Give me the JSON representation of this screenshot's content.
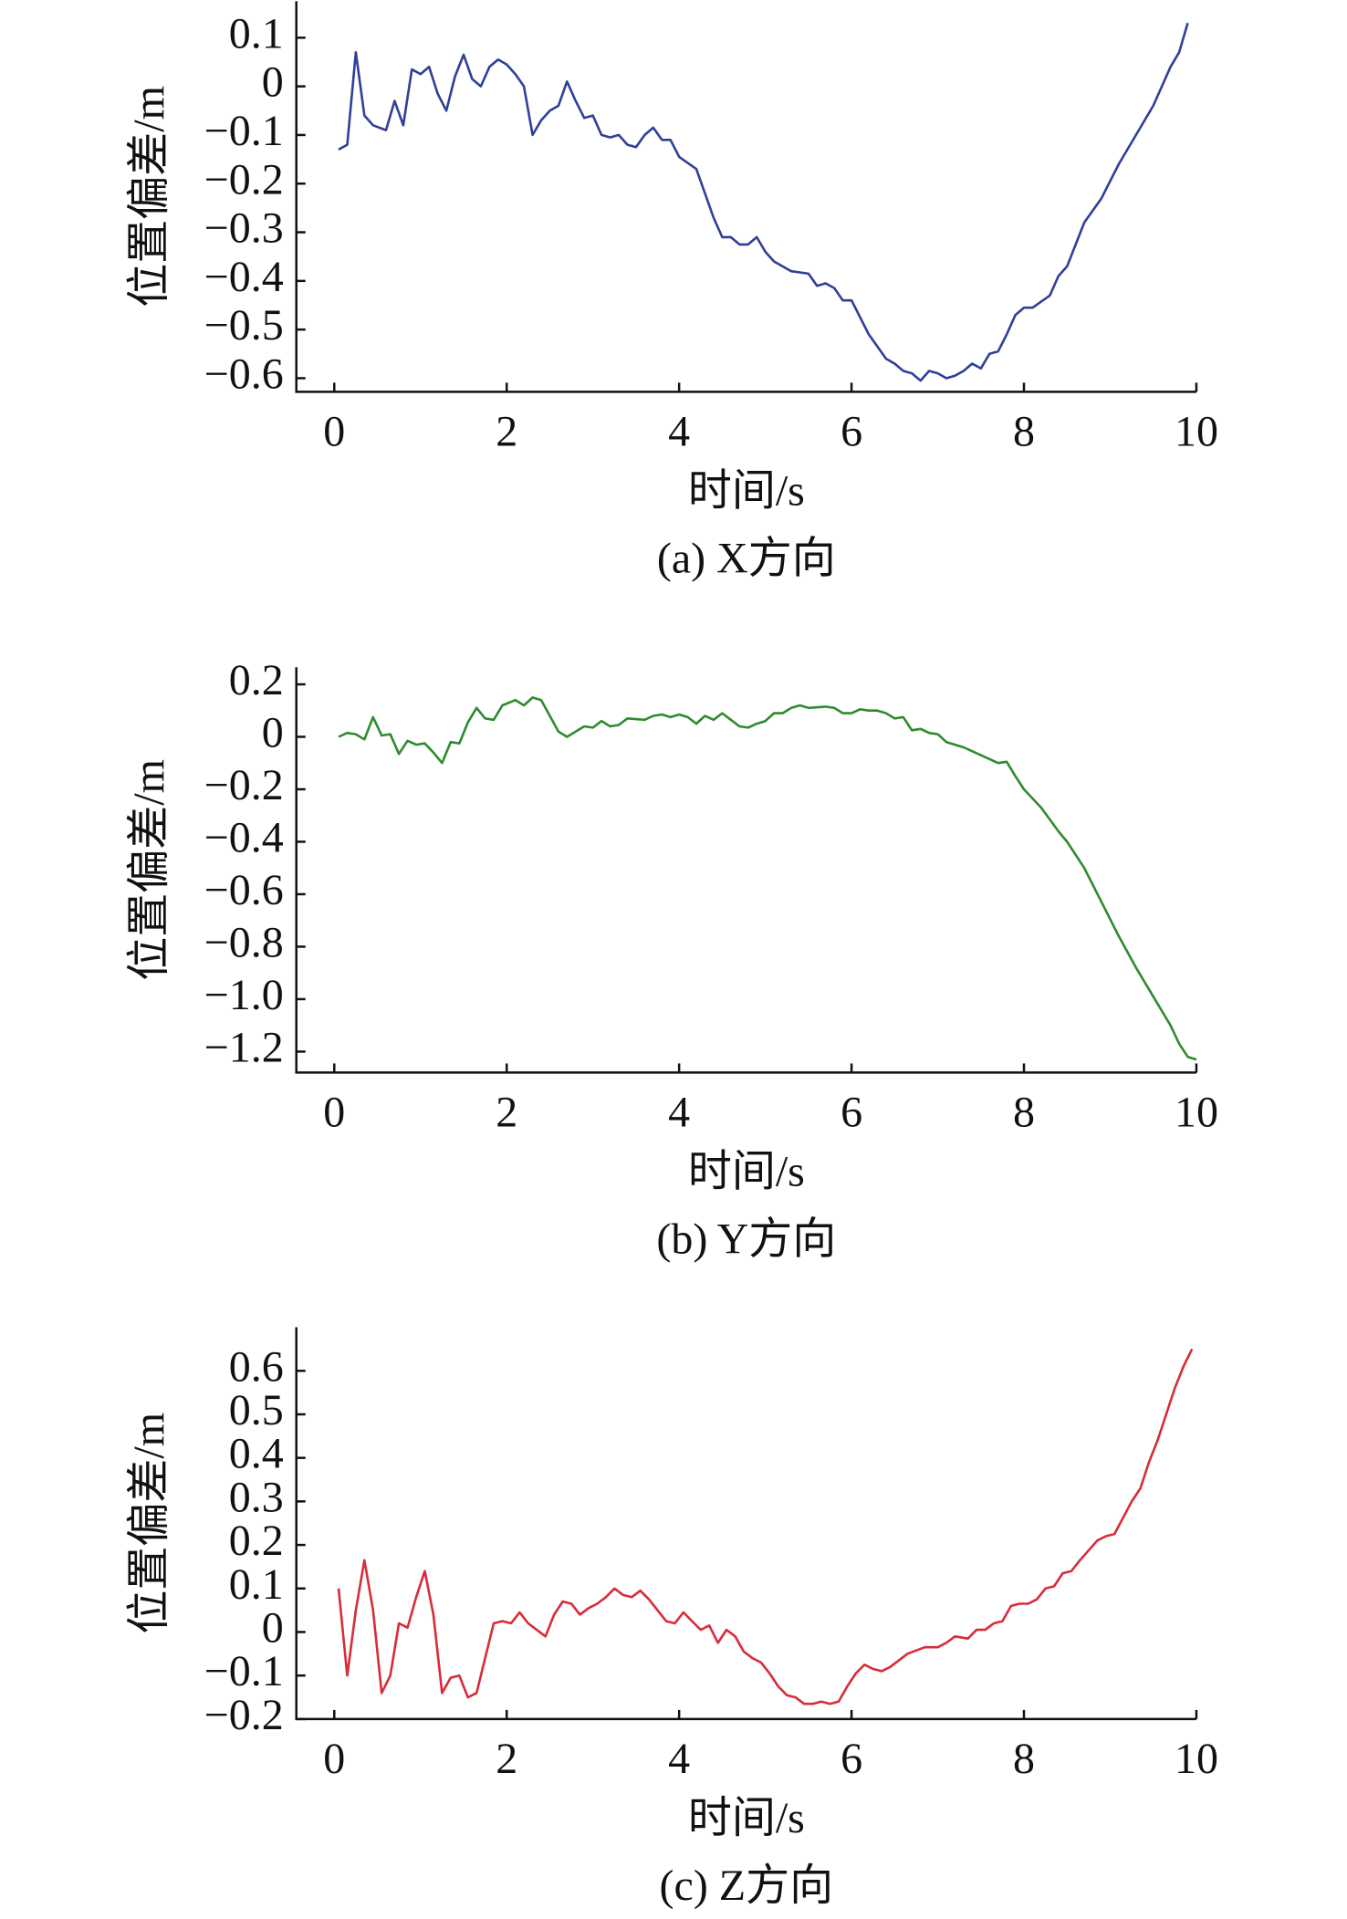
{
  "chart_data": [
    {
      "type": "line",
      "caption": "(a) X方向",
      "xlabel": "时间/s",
      "ylabel": "位置偏差/m",
      "color": "#2f3f9a",
      "xlim": [
        -0.44,
        10
      ],
      "xticks": [
        0,
        2,
        4,
        6,
        8,
        10
      ],
      "ylim": [
        -0.628,
        0.175
      ],
      "yticks": [
        0.1,
        0,
        {
          "value": -0.1,
          "label": "−0.1"
        },
        {
          "value": -0.2,
          "label": "−0.2"
        },
        {
          "value": -0.3,
          "label": "−0.3"
        },
        {
          "value": -0.4,
          "label": "−0.4"
        },
        {
          "value": -0.5,
          "label": "−0.5"
        },
        {
          "value": -0.6,
          "label": "−0.6"
        }
      ],
      "x": [
        0.05,
        0.15,
        0.25,
        0.35,
        0.45,
        0.6,
        0.7,
        0.8,
        0.9,
        1.0,
        1.1,
        1.2,
        1.3,
        1.4,
        1.5,
        1.6,
        1.7,
        1.8,
        1.9,
        2.0,
        2.1,
        2.2,
        2.3,
        2.4,
        2.5,
        2.6,
        2.7,
        2.8,
        2.9,
        3.0,
        3.1,
        3.2,
        3.3,
        3.4,
        3.5,
        3.6,
        3.7,
        3.8,
        3.9,
        4.0,
        4.2,
        4.3,
        4.4,
        4.5,
        4.6,
        4.7,
        4.8,
        4.9,
        5.0,
        5.1,
        5.3,
        5.5,
        5.6,
        5.7,
        5.8,
        5.9,
        6.0,
        6.2,
        6.4,
        6.5,
        6.6,
        6.7,
        6.8,
        6.9,
        7.0,
        7.1,
        7.2,
        7.3,
        7.4,
        7.5,
        7.6,
        7.7,
        7.8,
        7.9,
        8.0,
        8.1,
        8.3,
        8.4,
        8.5,
        8.7,
        8.9,
        9.1,
        9.3,
        9.5,
        9.7,
        9.8,
        9.9
      ],
      "values": [
        -0.13,
        -0.12,
        0.07,
        -0.06,
        -0.08,
        -0.09,
        -0.03,
        -0.08,
        0.035,
        0.025,
        0.04,
        -0.015,
        -0.05,
        0.02,
        0.065,
        0.015,
        0,
        0.04,
        0.055,
        0.045,
        0.025,
        0,
        -0.1,
        -0.07,
        -0.05,
        -0.04,
        0.01,
        -0.03,
        -0.065,
        -0.06,
        -0.1,
        -0.105,
        -0.1,
        -0.12,
        -0.125,
        -0.1,
        -0.085,
        -0.11,
        -0.11,
        -0.145,
        -0.17,
        -0.22,
        -0.27,
        -0.31,
        -0.31,
        -0.325,
        -0.325,
        -0.31,
        -0.34,
        -0.36,
        -0.38,
        -0.385,
        -0.41,
        -0.405,
        -0.415,
        -0.44,
        -0.44,
        -0.51,
        -0.56,
        -0.57,
        -0.585,
        -0.59,
        -0.605,
        -0.585,
        -0.59,
        -0.6,
        -0.595,
        -0.585,
        -0.57,
        -0.58,
        -0.55,
        -0.545,
        -0.51,
        -0.47,
        -0.455,
        -0.455,
        -0.43,
        -0.39,
        -0.37,
        -0.28,
        -0.23,
        -0.16,
        -0.1,
        -0.04,
        0.04,
        0.07,
        0.13
      ]
    },
    {
      "type": "line",
      "caption": "(b) Y方向",
      "xlabel": "时间/s",
      "ylabel": "位置偏差/m",
      "color": "#2e8b2e",
      "xlim": [
        -0.44,
        10
      ],
      "xticks": [
        0,
        2,
        4,
        6,
        8,
        10
      ],
      "ylim": [
        -1.28,
        0.265
      ],
      "yticks": [
        0.2,
        0,
        {
          "value": -0.2,
          "label": "−0.2"
        },
        {
          "value": -0.4,
          "label": "−0.4"
        },
        {
          "value": -0.6,
          "label": "−0.6"
        },
        {
          "value": -0.8,
          "label": "−0.8"
        },
        {
          "value": -1.0,
          "label": "−1.0"
        },
        {
          "value": -1.2,
          "label": "−1.2"
        }
      ],
      "x": [
        0.05,
        0.15,
        0.25,
        0.35,
        0.45,
        0.55,
        0.65,
        0.75,
        0.85,
        0.95,
        1.05,
        1.15,
        1.25,
        1.35,
        1.45,
        1.55,
        1.65,
        1.75,
        1.85,
        1.95,
        2.1,
        2.2,
        2.3,
        2.4,
        2.5,
        2.6,
        2.7,
        2.8,
        2.9,
        3.0,
        3.1,
        3.2,
        3.3,
        3.4,
        3.6,
        3.7,
        3.8,
        3.9,
        4.0,
        4.1,
        4.2,
        4.3,
        4.4,
        4.5,
        4.6,
        4.7,
        4.8,
        4.9,
        5.0,
        5.1,
        5.2,
        5.3,
        5.4,
        5.5,
        5.7,
        5.8,
        5.9,
        6.0,
        6.1,
        6.2,
        6.3,
        6.4,
        6.5,
        6.6,
        6.7,
        6.8,
        6.9,
        7.0,
        7.1,
        7.3,
        7.5,
        7.7,
        7.8,
        7.9,
        8.0,
        8.2,
        8.4,
        8.5,
        8.7,
        8.9,
        9.1,
        9.3,
        9.5,
        9.7,
        9.8,
        9.9,
        10
      ],
      "values": [
        0,
        0.015,
        0.01,
        -0.01,
        0.075,
        0.005,
        0.01,
        -0.065,
        -0.015,
        -0.03,
        -0.025,
        -0.06,
        -0.1,
        -0.02,
        -0.025,
        0.055,
        0.11,
        0.07,
        0.065,
        0.12,
        0.14,
        0.12,
        0.15,
        0.14,
        0.08,
        0.02,
        0,
        0.02,
        0.04,
        0.035,
        0.06,
        0.04,
        0.045,
        0.07,
        0.065,
        0.08,
        0.085,
        0.075,
        0.085,
        0.075,
        0.05,
        0.08,
        0.065,
        0.09,
        0.065,
        0.04,
        0.035,
        0.05,
        0.06,
        0.09,
        0.09,
        0.11,
        0.12,
        0.11,
        0.115,
        0.11,
        0.09,
        0.09,
        0.105,
        0.1,
        0.1,
        0.09,
        0.07,
        0.075,
        0.025,
        0.03,
        0.015,
        0.01,
        -0.02,
        -0.04,
        -0.07,
        -0.1,
        -0.095,
        -0.15,
        -0.2,
        -0.27,
        -0.36,
        -0.4,
        -0.5,
        -0.63,
        -0.76,
        -0.88,
        -0.99,
        -1.1,
        -1.17,
        -1.22,
        -1.23
      ]
    },
    {
      "type": "line",
      "caption": "(c) Z方向",
      "xlabel": "时间/s",
      "ylabel": "位置偏差/m",
      "color": "#d92b3a",
      "xlim": [
        -0.44,
        10
      ],
      "xticks": [
        0,
        2,
        4,
        6,
        8,
        10
      ],
      "ylim": [
        -0.2,
        0.7
      ],
      "yticks": [
        0.6,
        0.5,
        0.4,
        0.3,
        0.2,
        0.1,
        0,
        {
          "value": -0.1,
          "label": "−0.1"
        },
        {
          "value": -0.2,
          "label": "−0.2"
        }
      ],
      "x": [
        0.05,
        0.15,
        0.25,
        0.35,
        0.45,
        0.55,
        0.65,
        0.75,
        0.85,
        0.95,
        1.05,
        1.15,
        1.25,
        1.35,
        1.45,
        1.55,
        1.65,
        1.75,
        1.85,
        1.95,
        2.05,
        2.15,
        2.25,
        2.45,
        2.55,
        2.65,
        2.75,
        2.85,
        2.95,
        3.05,
        3.15,
        3.25,
        3.35,
        3.45,
        3.55,
        3.65,
        3.75,
        3.85,
        3.95,
        4.05,
        4.15,
        4.25,
        4.35,
        4.45,
        4.55,
        4.65,
        4.75,
        4.85,
        4.95,
        5.05,
        5.15,
        5.25,
        5.35,
        5.45,
        5.55,
        5.65,
        5.75,
        5.85,
        5.95,
        6.05,
        6.15,
        6.25,
        6.35,
        6.45,
        6.65,
        6.85,
        7.0,
        7.1,
        7.2,
        7.35,
        7.45,
        7.55,
        7.65,
        7.75,
        7.85,
        7.95,
        8.05,
        8.15,
        8.25,
        8.35,
        8.45,
        8.55,
        8.65,
        8.85,
        8.95,
        9.05,
        9.25,
        9.35,
        9.45,
        9.55,
        9.65,
        9.75,
        9.85,
        9.95
      ],
      "values": [
        0.1,
        -0.1,
        0.05,
        0.165,
        0.05,
        -0.14,
        -0.1,
        0.02,
        0.01,
        0.08,
        0.14,
        0.04,
        -0.14,
        -0.105,
        -0.1,
        -0.15,
        -0.14,
        -0.06,
        0.02,
        0.025,
        0.02,
        0.045,
        0.02,
        -0.01,
        0.04,
        0.07,
        0.065,
        0.04,
        0.055,
        0.065,
        0.08,
        0.1,
        0.085,
        0.08,
        0.095,
        0.075,
        0.05,
        0.025,
        0.02,
        0.045,
        0.025,
        0.005,
        0.015,
        -0.025,
        0.005,
        -0.01,
        -0.045,
        -0.06,
        -0.07,
        -0.095,
        -0.125,
        -0.145,
        -0.15,
        -0.165,
        -0.165,
        -0.16,
        -0.165,
        -0.16,
        -0.125,
        -0.095,
        -0.075,
        -0.085,
        -0.09,
        -0.08,
        -0.05,
        -0.035,
        -0.035,
        -0.025,
        -0.01,
        -0.015,
        0.005,
        0.005,
        0.02,
        0.025,
        0.06,
        0.065,
        0.065,
        0.075,
        0.1,
        0.105,
        0.135,
        0.14,
        0.165,
        0.21,
        0.22,
        0.225,
        0.3,
        0.33,
        0.39,
        0.44,
        0.5,
        0.56,
        0.61,
        0.65
      ]
    }
  ]
}
